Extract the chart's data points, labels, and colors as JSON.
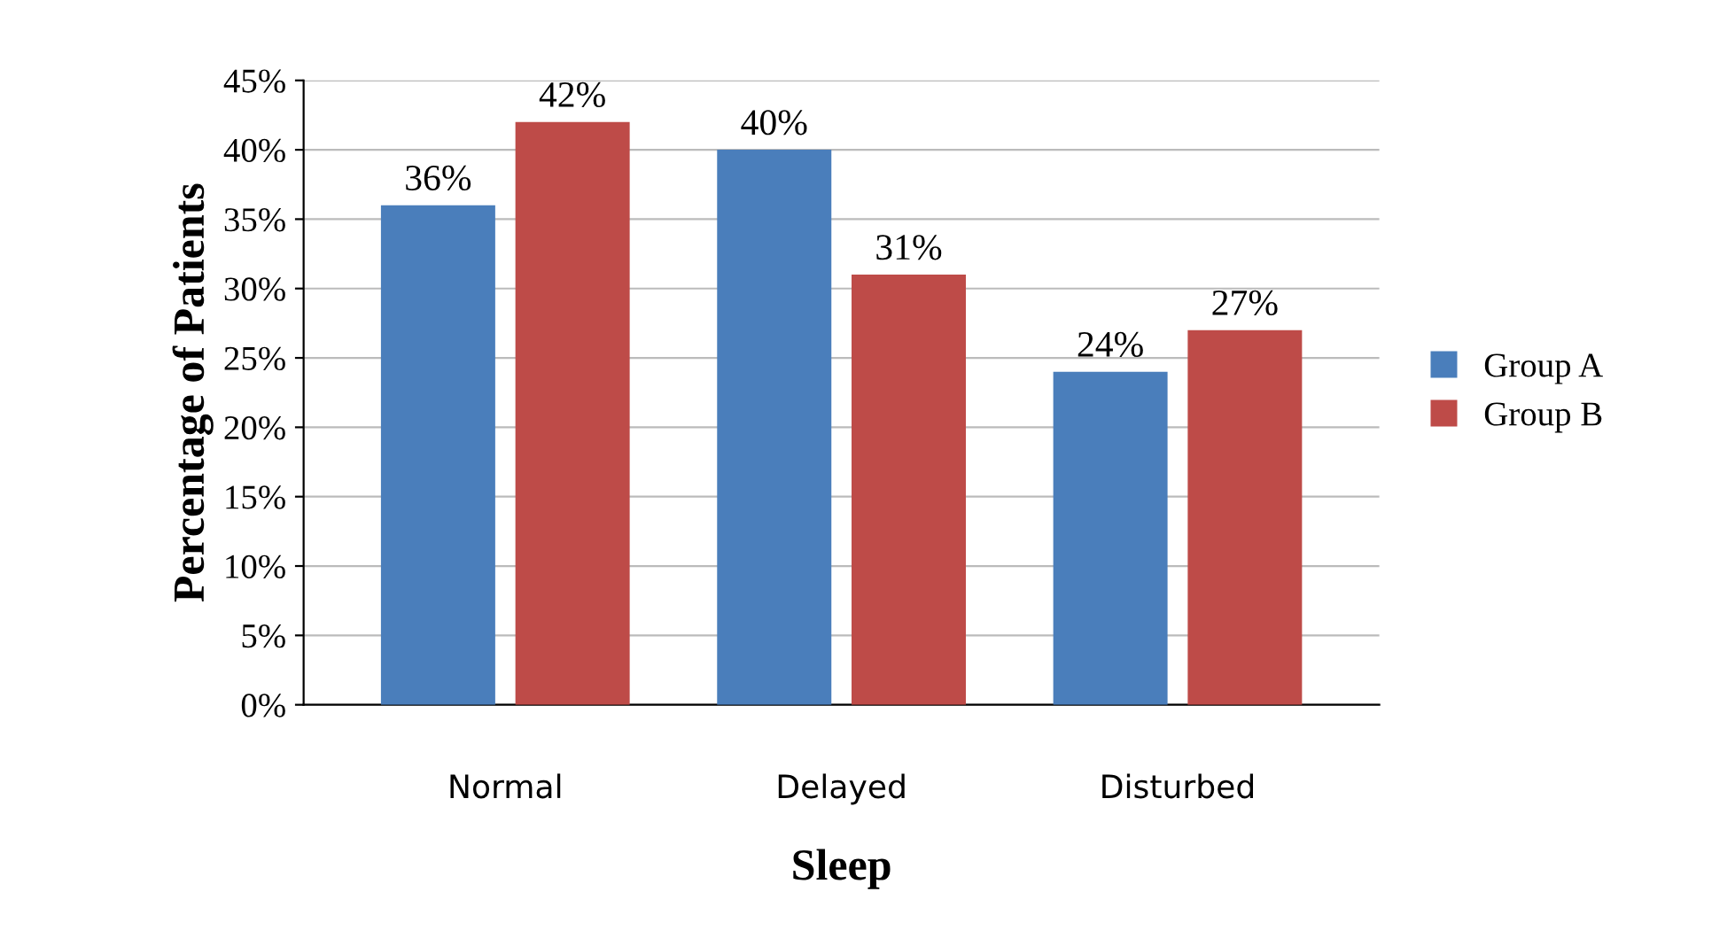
{
  "chart_data": {
    "type": "bar",
    "xlabel": "Sleep",
    "ylabel": "Percentage of Patients",
    "categories": [
      "Normal",
      "Delayed",
      "Disturbed"
    ],
    "series": [
      {
        "name": "Group A",
        "color": "#4a7ebb",
        "values": [
          36,
          40,
          24
        ],
        "value_labels": [
          "36%",
          "40%",
          "24%"
        ]
      },
      {
        "name": "Group B",
        "color": "#be4b48",
        "values": [
          42,
          31,
          27
        ],
        "value_labels": [
          "42%",
          "31%",
          "27%"
        ]
      }
    ],
    "ylim": [
      0,
      45
    ],
    "yticks": [
      {
        "value": 0,
        "label": "0%"
      },
      {
        "value": 5,
        "label": "5%"
      },
      {
        "value": 10,
        "label": "10%"
      },
      {
        "value": 15,
        "label": "15%"
      },
      {
        "value": 20,
        "label": "20%"
      },
      {
        "value": 25,
        "label": "25%"
      },
      {
        "value": 30,
        "label": "30%"
      },
      {
        "value": 35,
        "label": "35%"
      },
      {
        "value": 40,
        "label": "40%"
      },
      {
        "value": 45,
        "label": "45%"
      }
    ],
    "grid": "y",
    "legend": "right"
  }
}
